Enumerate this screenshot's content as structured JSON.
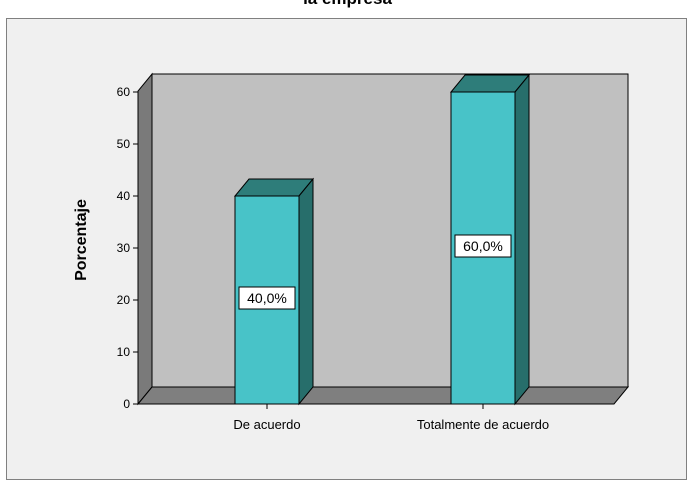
{
  "chart_data": {
    "type": "bar",
    "title": "la empresa",
    "xlabel": "",
    "ylabel": "Porcentaje",
    "categories": [
      "De acuerdo",
      "Totalmente de acuerdo"
    ],
    "values": [
      40.0,
      60.0
    ],
    "data_labels": [
      "40,0%",
      "60,0%"
    ],
    "yticks": [
      0,
      10,
      20,
      30,
      40,
      50,
      60
    ],
    "ylim": [
      0,
      60
    ],
    "grid": false,
    "style": "3d",
    "colors": {
      "bar_front": "#48c3c8",
      "bar_top": "#2e7d7a",
      "bar_side": "#276e6b",
      "wall": "#c0c0c0",
      "floor": "#7f7f7f",
      "side_wall": "#7a7a7a",
      "frame": "#f0f0f0"
    }
  }
}
